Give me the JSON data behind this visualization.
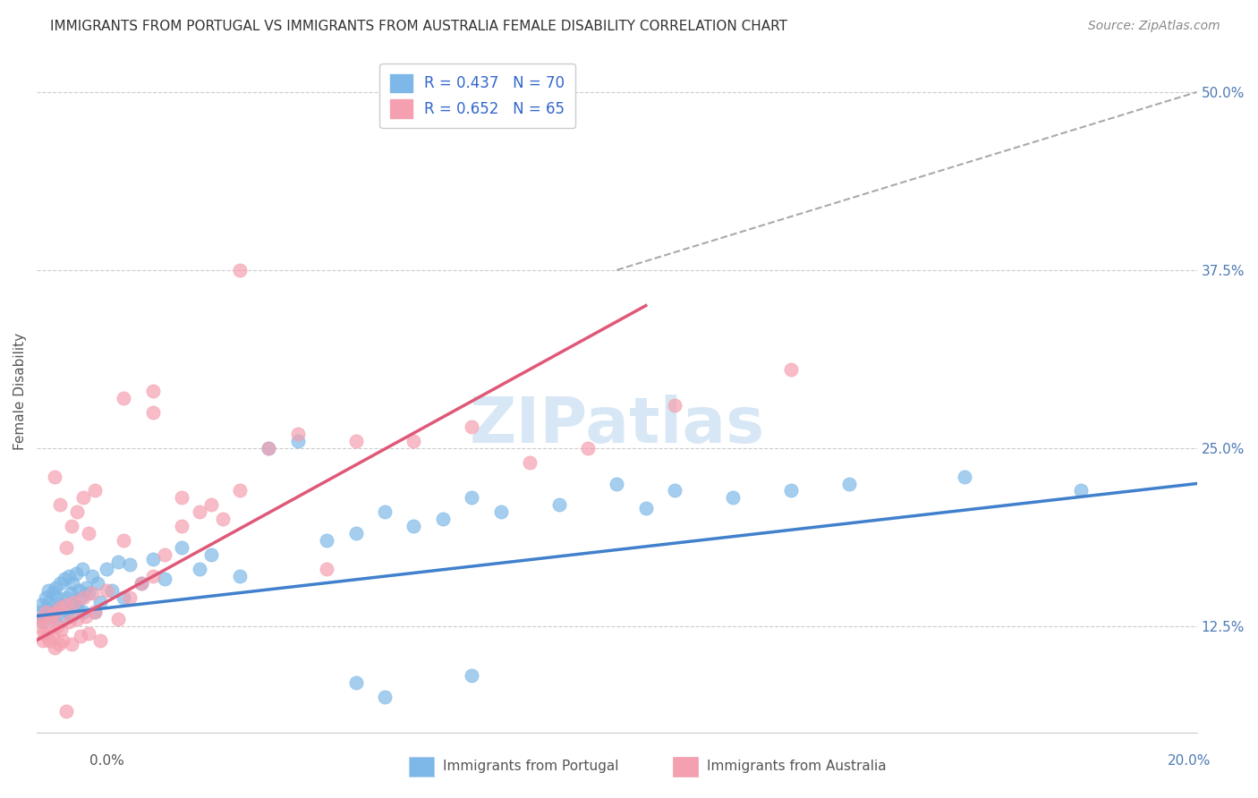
{
  "title": "IMMIGRANTS FROM PORTUGAL VS IMMIGRANTS FROM AUSTRALIA FEMALE DISABILITY CORRELATION CHART",
  "source": "Source: ZipAtlas.com",
  "ylabel": "Female Disability",
  "xlim": [
    0.0,
    20.0
  ],
  "ylim": [
    5.0,
    53.0
  ],
  "yticks": [
    12.5,
    25.0,
    37.5,
    50.0
  ],
  "series1_label": "Immigrants from Portugal",
  "series2_label": "Immigrants from Australia",
  "series1_color": "#7eb8e8",
  "series2_color": "#f5a0b0",
  "series1_line_color": "#4080cc",
  "series2_line_color": "#e05878",
  "series1_R": "0.437",
  "series1_N": "70",
  "series2_R": "0.652",
  "series2_N": "65",
  "legend_text_color": "#3366cc",
  "background_color": "#ffffff",
  "portugal_x": [
    0.05,
    0.08,
    0.1,
    0.12,
    0.15,
    0.17,
    0.2,
    0.22,
    0.25,
    0.28,
    0.3,
    0.32,
    0.35,
    0.38,
    0.4,
    0.42,
    0.45,
    0.48,
    0.5,
    0.52,
    0.55,
    0.58,
    0.6,
    0.62,
    0.65,
    0.68,
    0.7,
    0.72,
    0.75,
    0.78,
    0.8,
    0.85,
    0.9,
    0.95,
    1.0,
    1.05,
    1.1,
    1.2,
    1.3,
    1.4,
    1.5,
    1.6,
    1.8,
    2.0,
    2.2,
    2.5,
    2.8,
    3.0,
    3.5,
    4.0,
    4.5,
    5.0,
    5.5,
    6.0,
    6.5,
    7.0,
    7.5,
    8.0,
    9.0,
    10.0,
    10.5,
    11.0,
    12.0,
    13.0,
    14.0,
    5.5,
    6.0,
    7.5,
    18.0,
    16.0
  ],
  "portugal_y": [
    13.5,
    14.0,
    12.8,
    13.2,
    14.5,
    13.8,
    15.0,
    14.2,
    13.5,
    14.8,
    13.0,
    15.2,
    14.5,
    13.8,
    15.5,
    14.0,
    13.2,
    15.8,
    14.5,
    13.5,
    16.0,
    14.8,
    13.2,
    15.5,
    14.0,
    16.2,
    13.8,
    15.0,
    14.5,
    16.5,
    13.5,
    15.2,
    14.8,
    16.0,
    13.5,
    15.5,
    14.2,
    16.5,
    15.0,
    17.0,
    14.5,
    16.8,
    15.5,
    17.2,
    15.8,
    18.0,
    16.5,
    17.5,
    16.0,
    25.0,
    25.5,
    18.5,
    19.0,
    20.5,
    19.5,
    20.0,
    21.5,
    20.5,
    21.0,
    22.5,
    20.8,
    22.0,
    21.5,
    22.0,
    22.5,
    8.5,
    7.5,
    9.0,
    22.0,
    23.0
  ],
  "australia_x": [
    0.05,
    0.08,
    0.1,
    0.12,
    0.15,
    0.18,
    0.2,
    0.22,
    0.25,
    0.28,
    0.3,
    0.32,
    0.35,
    0.38,
    0.4,
    0.42,
    0.45,
    0.5,
    0.55,
    0.6,
    0.65,
    0.7,
    0.75,
    0.8,
    0.85,
    0.9,
    0.95,
    1.0,
    1.1,
    1.2,
    1.4,
    1.6,
    1.8,
    2.0,
    2.2,
    2.5,
    2.8,
    3.0,
    3.5,
    4.0,
    4.5,
    5.0,
    1.5,
    2.5,
    3.2,
    0.5,
    0.6,
    0.7,
    0.8,
    0.9,
    1.0,
    6.5,
    7.5,
    8.5,
    9.5,
    11.0,
    13.0,
    5.5,
    2.0,
    3.5,
    1.5,
    2.0,
    0.4,
    0.3,
    0.5
  ],
  "australia_y": [
    12.5,
    13.0,
    11.5,
    12.0,
    13.5,
    11.8,
    12.8,
    11.5,
    13.2,
    12.0,
    11.0,
    13.5,
    12.5,
    11.2,
    13.8,
    12.2,
    11.5,
    14.0,
    12.8,
    11.2,
    14.2,
    13.0,
    11.8,
    14.5,
    13.2,
    12.0,
    14.8,
    13.5,
    11.5,
    15.0,
    13.0,
    14.5,
    15.5,
    16.0,
    17.5,
    19.5,
    20.5,
    21.0,
    22.0,
    25.0,
    26.0,
    16.5,
    18.5,
    21.5,
    20.0,
    18.0,
    19.5,
    20.5,
    21.5,
    19.0,
    22.0,
    25.5,
    26.5,
    24.0,
    25.0,
    28.0,
    30.5,
    25.5,
    27.5,
    37.5,
    28.5,
    29.0,
    21.0,
    23.0,
    6.5
  ],
  "dash_x0": 10.0,
  "dash_y0": 37.5,
  "dash_x1": 20.0,
  "dash_y1": 50.0,
  "port_trend_x0": 0.0,
  "port_trend_y0": 13.2,
  "port_trend_x1": 20.0,
  "port_trend_y1": 22.5,
  "aus_trend_x0": 0.0,
  "aus_trend_y0": 11.5,
  "aus_trend_x1": 10.5,
  "aus_trend_y1": 35.0
}
